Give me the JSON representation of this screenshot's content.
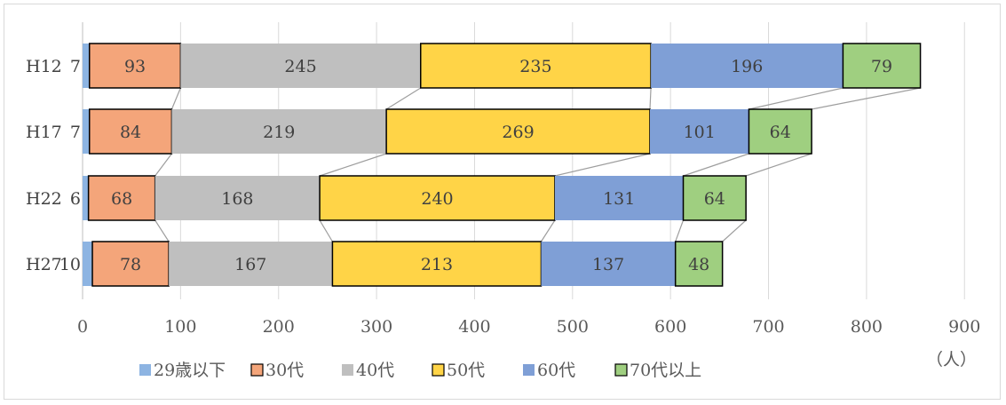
{
  "chart_data": {
    "type": "bar",
    "orientation": "horizontal",
    "stacked": true,
    "categories": [
      "H12",
      "H17",
      "H22",
      "H27"
    ],
    "series": [
      {
        "name": "29歳以下",
        "color": "#8db4e2",
        "values": [
          7,
          7,
          6,
          10
        ],
        "highlight": false
      },
      {
        "name": "30代",
        "color": "#f4a57a",
        "values": [
          93,
          84,
          68,
          78
        ],
        "highlight": true
      },
      {
        "name": "40代",
        "color": "#bfbfbf",
        "values": [
          245,
          219,
          168,
          167
        ],
        "highlight": false
      },
      {
        "name": "50代",
        "color": "#ffd447",
        "values": [
          235,
          269,
          240,
          213
        ],
        "highlight": true
      },
      {
        "name": "60代",
        "color": "#7f9fd6",
        "values": [
          196,
          101,
          131,
          137
        ],
        "highlight": false
      },
      {
        "name": "70代以上",
        "color": "#9fcf80",
        "values": [
          79,
          64,
          64,
          48
        ],
        "highlight": true
      }
    ],
    "x_ticks": [
      "0",
      "100",
      "200",
      "300",
      "400",
      "500",
      "600",
      "700",
      "800",
      "900"
    ],
    "xlim": [
      0,
      900
    ],
    "unit_label": "（人）",
    "grid": true,
    "legend_position": "bottom",
    "series_lines": true,
    "outside_label_series": [
      "29歳以下"
    ]
  }
}
